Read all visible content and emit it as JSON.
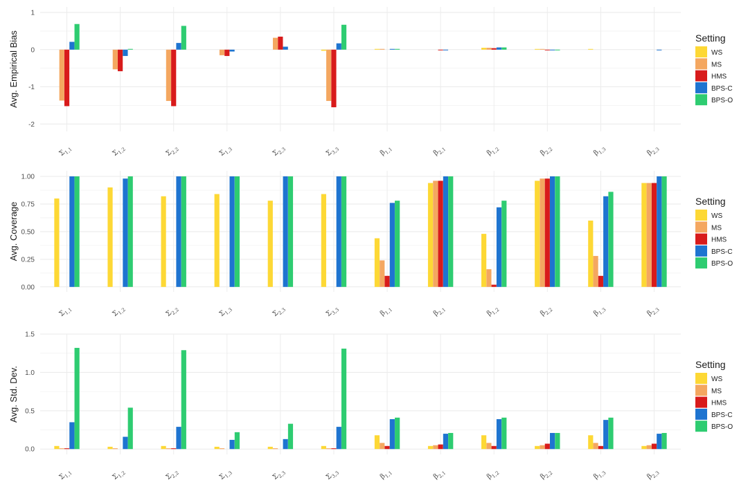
{
  "settings": [
    "WS",
    "MS",
    "HMS",
    "BPS-C",
    "BPS-O"
  ],
  "colors": {
    "WS": "#FDD835",
    "MS": "#F4A760",
    "HMS": "#D81B1B",
    "BPS-C": "#1E74D0",
    "BPS-O": "#2ECC71"
  },
  "legend_title": "Setting",
  "categories": [
    {
      "base": "Σ",
      "sub": "1,1"
    },
    {
      "base": "Σ",
      "sub": "1,2"
    },
    {
      "base": "Σ",
      "sub": "2,2"
    },
    {
      "base": "Σ",
      "sub": "1,3"
    },
    {
      "base": "Σ",
      "sub": "2,3"
    },
    {
      "base": "Σ",
      "sub": "3,3"
    },
    {
      "base": "β",
      "sub": "1,1"
    },
    {
      "base": "β",
      "sub": "2,1"
    },
    {
      "base": "β",
      "sub": "1,2"
    },
    {
      "base": "β",
      "sub": "2,2"
    },
    {
      "base": "β",
      "sub": "1,3"
    },
    {
      "base": "β",
      "sub": "2,3"
    }
  ],
  "chart_data": [
    {
      "type": "bar",
      "ylabel": "Avg. Empirical Bias",
      "ylim": [
        -2.2,
        1.15
      ],
      "yticks": [
        -2,
        -1,
        0,
        1
      ],
      "ytick_labels": [
        "-2",
        "-1",
        "0",
        "1"
      ],
      "grid": true,
      "legend": "right",
      "series": [
        {
          "name": "WS",
          "values": [
            0,
            0,
            0,
            0,
            0,
            -0.03,
            0.02,
            0,
            0.05,
            0.01,
            0.01,
            0
          ]
        },
        {
          "name": "MS",
          "values": [
            -1.37,
            -0.53,
            -1.38,
            -0.15,
            0.32,
            -1.38,
            0.02,
            0,
            0.05,
            0.01,
            0,
            0
          ]
        },
        {
          "name": "HMS",
          "values": [
            -1.52,
            -0.58,
            -1.52,
            -0.17,
            0.35,
            -1.55,
            0,
            -0.01,
            0.04,
            -0.01,
            0,
            0
          ]
        },
        {
          "name": "BPS-C",
          "values": [
            0.21,
            -0.17,
            0.18,
            -0.05,
            0.08,
            0.17,
            0.02,
            -0.01,
            0.06,
            -0.01,
            0,
            -0.01
          ]
        },
        {
          "name": "BPS-O",
          "values": [
            0.69,
            0.02,
            0.64,
            0,
            0,
            0.67,
            0.02,
            0,
            0.06,
            -0.01,
            0,
            0
          ]
        }
      ]
    },
    {
      "type": "bar",
      "ylabel": "Avg. Coverage",
      "ylim": [
        -0.045,
        1.05
      ],
      "yticks": [
        0,
        0.25,
        0.5,
        0.75,
        1
      ],
      "ytick_labels": [
        "0.00",
        "0.25",
        "0.50",
        "0.75",
        "1.00"
      ],
      "grid": true,
      "legend": "right",
      "series": [
        {
          "name": "WS",
          "values": [
            0.8,
            0.9,
            0.82,
            0.84,
            0.78,
            0.84,
            0.44,
            0.94,
            0.48,
            0.96,
            0.6,
            0.94
          ]
        },
        {
          "name": "MS",
          "values": [
            0,
            0,
            0,
            0,
            0,
            0,
            0.24,
            0.96,
            0.16,
            0.98,
            0.28,
            0.94
          ]
        },
        {
          "name": "HMS",
          "values": [
            0,
            0,
            0,
            0,
            0,
            0,
            0.1,
            0.96,
            0.02,
            0.98,
            0.1,
            0.94
          ]
        },
        {
          "name": "BPS-C",
          "values": [
            1,
            0.98,
            1,
            1,
            1,
            1,
            0.76,
            1,
            0.72,
            1,
            0.82,
            1
          ]
        },
        {
          "name": "BPS-O",
          "values": [
            1,
            1,
            1,
            1,
            1,
            1,
            0.78,
            1,
            0.78,
            1,
            0.86,
            1
          ]
        }
      ]
    },
    {
      "type": "bar",
      "ylabel": "Avg. Std. Dev.",
      "ylim": [
        -0.07,
        1.5
      ],
      "yticks": [
        0,
        0.5,
        1,
        1.5
      ],
      "ytick_labels": [
        "0.0",
        "0.5",
        "1.0",
        "1.5"
      ],
      "grid": true,
      "legend": "right",
      "series": [
        {
          "name": "WS",
          "values": [
            0.04,
            0.03,
            0.04,
            0.03,
            0.03,
            0.04,
            0.18,
            0.04,
            0.18,
            0.04,
            0.18,
            0.04
          ]
        },
        {
          "name": "MS",
          "values": [
            0.01,
            0.01,
            0.01,
            0.01,
            0.01,
            0.01,
            0.08,
            0.05,
            0.08,
            0.05,
            0.08,
            0.05
          ]
        },
        {
          "name": "HMS",
          "values": [
            0.01,
            0,
            0.01,
            0,
            0,
            0.01,
            0.04,
            0.06,
            0.04,
            0.07,
            0.04,
            0.07
          ]
        },
        {
          "name": "BPS-C",
          "values": [
            0.35,
            0.16,
            0.29,
            0.12,
            0.13,
            0.29,
            0.39,
            0.2,
            0.39,
            0.21,
            0.38,
            0.2
          ]
        },
        {
          "name": "BPS-O",
          "values": [
            1.32,
            0.54,
            1.29,
            0.22,
            0.33,
            1.31,
            0.41,
            0.21,
            0.41,
            0.21,
            0.41,
            0.21
          ]
        }
      ]
    }
  ]
}
